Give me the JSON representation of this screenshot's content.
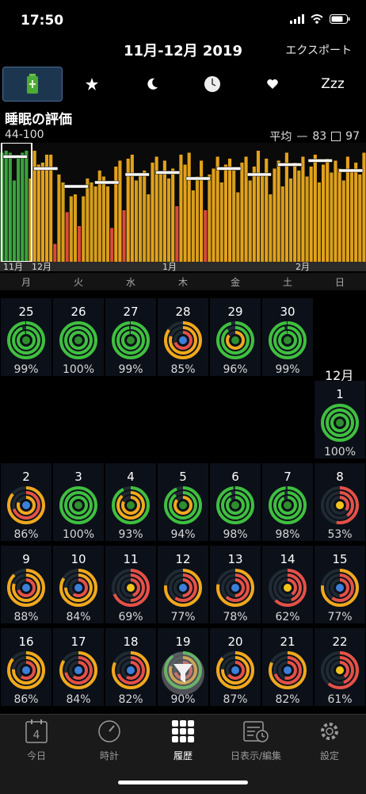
{
  "status": {
    "time": "17:50"
  },
  "nav": {
    "title": "11月-12月 2019",
    "export": "エクスポート"
  },
  "tabs": [
    {
      "name": "battery-icon"
    },
    {
      "name": "star-icon"
    },
    {
      "name": "moon-icon"
    },
    {
      "name": "clock-icon"
    },
    {
      "name": "heart-icon"
    },
    {
      "name": "zzz-icon",
      "label": "Zzz"
    }
  ],
  "chart": {
    "title": "睡眠の評価",
    "range": "44-100",
    "legend_avg_label": "平均",
    "legend_avg_value": "83",
    "legend_box_value": "97",
    "month_labels": [
      "11月",
      "12月",
      "1月",
      "2月"
    ]
  },
  "chart_data": {
    "type": "bar",
    "ylim": [
      44,
      100
    ],
    "values": [
      99,
      100,
      99,
      85,
      96,
      99,
      100,
      86,
      100,
      93,
      94,
      98,
      98,
      53,
      88,
      84,
      69,
      77,
      78,
      62,
      77,
      86,
      84,
      82,
      90,
      87,
      82,
      61,
      92,
      95,
      70,
      96,
      98,
      85,
      88,
      90,
      78,
      94,
      97,
      89,
      95,
      86,
      91,
      72,
      98,
      93,
      99,
      80,
      87,
      95,
      70,
      88,
      91,
      97,
      84,
      93,
      96,
      90,
      79,
      94,
      97,
      85,
      92,
      100,
      88,
      96,
      78,
      91,
      95,
      82,
      99,
      86,
      94,
      90,
      97,
      87,
      92,
      98,
      84,
      93,
      96,
      89,
      95,
      91,
      85,
      97,
      90,
      94,
      88,
      99
    ],
    "weekly_avg": [
      97,
      91,
      82,
      84,
      88,
      89,
      86,
      91,
      88,
      93,
      95,
      90
    ],
    "colors": {
      "high": "#e3a21a",
      "mid": "#d69e1c",
      "low": "#d94a3a",
      "top": "#3aa33a"
    }
  },
  "weekdays": [
    "月",
    "火",
    "水",
    "木",
    "金",
    "土",
    "日"
  ],
  "calendar": {
    "month_label": "12月",
    "rows": [
      [
        {
          "d": "25",
          "p": "99%",
          "r": [
            0.99,
            0.95,
            0.97
          ]
        },
        {
          "d": "26",
          "p": "100%",
          "r": [
            1,
            1,
            1
          ]
        },
        {
          "d": "27",
          "p": "99%",
          "r": [
            0.99,
            0.98,
            0.97
          ]
        },
        {
          "d": "28",
          "p": "85%",
          "r": [
            0.85,
            0.8,
            0.7
          ]
        },
        {
          "d": "29",
          "p": "96%",
          "r": [
            0.96,
            0.9,
            0.85
          ]
        },
        {
          "d": "30",
          "p": "99%",
          "r": [
            0.99,
            0.96,
            0.98
          ]
        }
      ],
      [
        {
          "d": "1",
          "p": "100%",
          "r": [
            1,
            1,
            1
          ]
        }
      ],
      [
        {
          "d": "2",
          "p": "86%",
          "r": [
            0.86,
            0.7,
            0.8
          ]
        },
        {
          "d": "3",
          "p": "100%",
          "r": [
            1,
            1,
            1
          ]
        },
        {
          "d": "4",
          "p": "93%",
          "r": [
            0.93,
            0.88,
            0.82
          ]
        },
        {
          "d": "5",
          "p": "94%",
          "r": [
            0.94,
            0.9,
            0.86
          ]
        },
        {
          "d": "6",
          "p": "98%",
          "r": [
            0.98,
            0.95,
            0.9
          ]
        },
        {
          "d": "7",
          "p": "98%",
          "r": [
            0.98,
            0.96,
            0.92
          ]
        },
        {
          "d": "8",
          "p": "53%",
          "r": [
            0.53,
            0.4,
            0.35
          ]
        }
      ],
      [
        {
          "d": "9",
          "p": "88%",
          "r": [
            0.88,
            0.8,
            0.7
          ]
        },
        {
          "d": "10",
          "p": "84%",
          "r": [
            0.84,
            0.75,
            0.6
          ]
        },
        {
          "d": "11",
          "p": "69%",
          "r": [
            0.69,
            0.5,
            0.45
          ]
        },
        {
          "d": "12",
          "p": "77%",
          "r": [
            0.77,
            0.6,
            0.5
          ]
        },
        {
          "d": "13",
          "p": "78%",
          "r": [
            0.78,
            0.62,
            0.5
          ]
        },
        {
          "d": "14",
          "p": "62%",
          "r": [
            0.62,
            0.45,
            0.4
          ]
        },
        {
          "d": "15",
          "p": "77%",
          "r": [
            0.77,
            0.6,
            0.5
          ]
        }
      ],
      [
        {
          "d": "16",
          "p": "86%",
          "r": [
            0.86,
            0.76,
            0.6
          ]
        },
        {
          "d": "17",
          "p": "84%",
          "r": [
            0.84,
            0.72,
            0.6
          ]
        },
        {
          "d": "18",
          "p": "82%",
          "r": [
            0.82,
            0.7,
            0.58
          ]
        },
        {
          "d": "19",
          "p": "90%",
          "r": [
            0.9,
            0.8,
            0.7
          ]
        },
        {
          "d": "20",
          "p": "87%",
          "r": [
            0.87,
            0.76,
            0.65
          ]
        },
        {
          "d": "21",
          "p": "82%",
          "r": [
            0.82,
            0.7,
            0.55
          ]
        },
        {
          "d": "22",
          "p": "61%",
          "r": [
            0.61,
            0.45,
            0.4
          ]
        }
      ]
    ]
  },
  "tabbar": [
    {
      "name": "today",
      "label": "今日",
      "icon": "calendar-day-icon",
      "day": "4"
    },
    {
      "name": "clock",
      "label": "時計",
      "icon": "gauge-icon"
    },
    {
      "name": "history",
      "label": "履歴",
      "icon": "grid-icon"
    },
    {
      "name": "day-edit",
      "label": "日表示/編集",
      "icon": "calendar-clock-icon"
    },
    {
      "name": "settings",
      "label": "設定",
      "icon": "gear-icon"
    }
  ]
}
